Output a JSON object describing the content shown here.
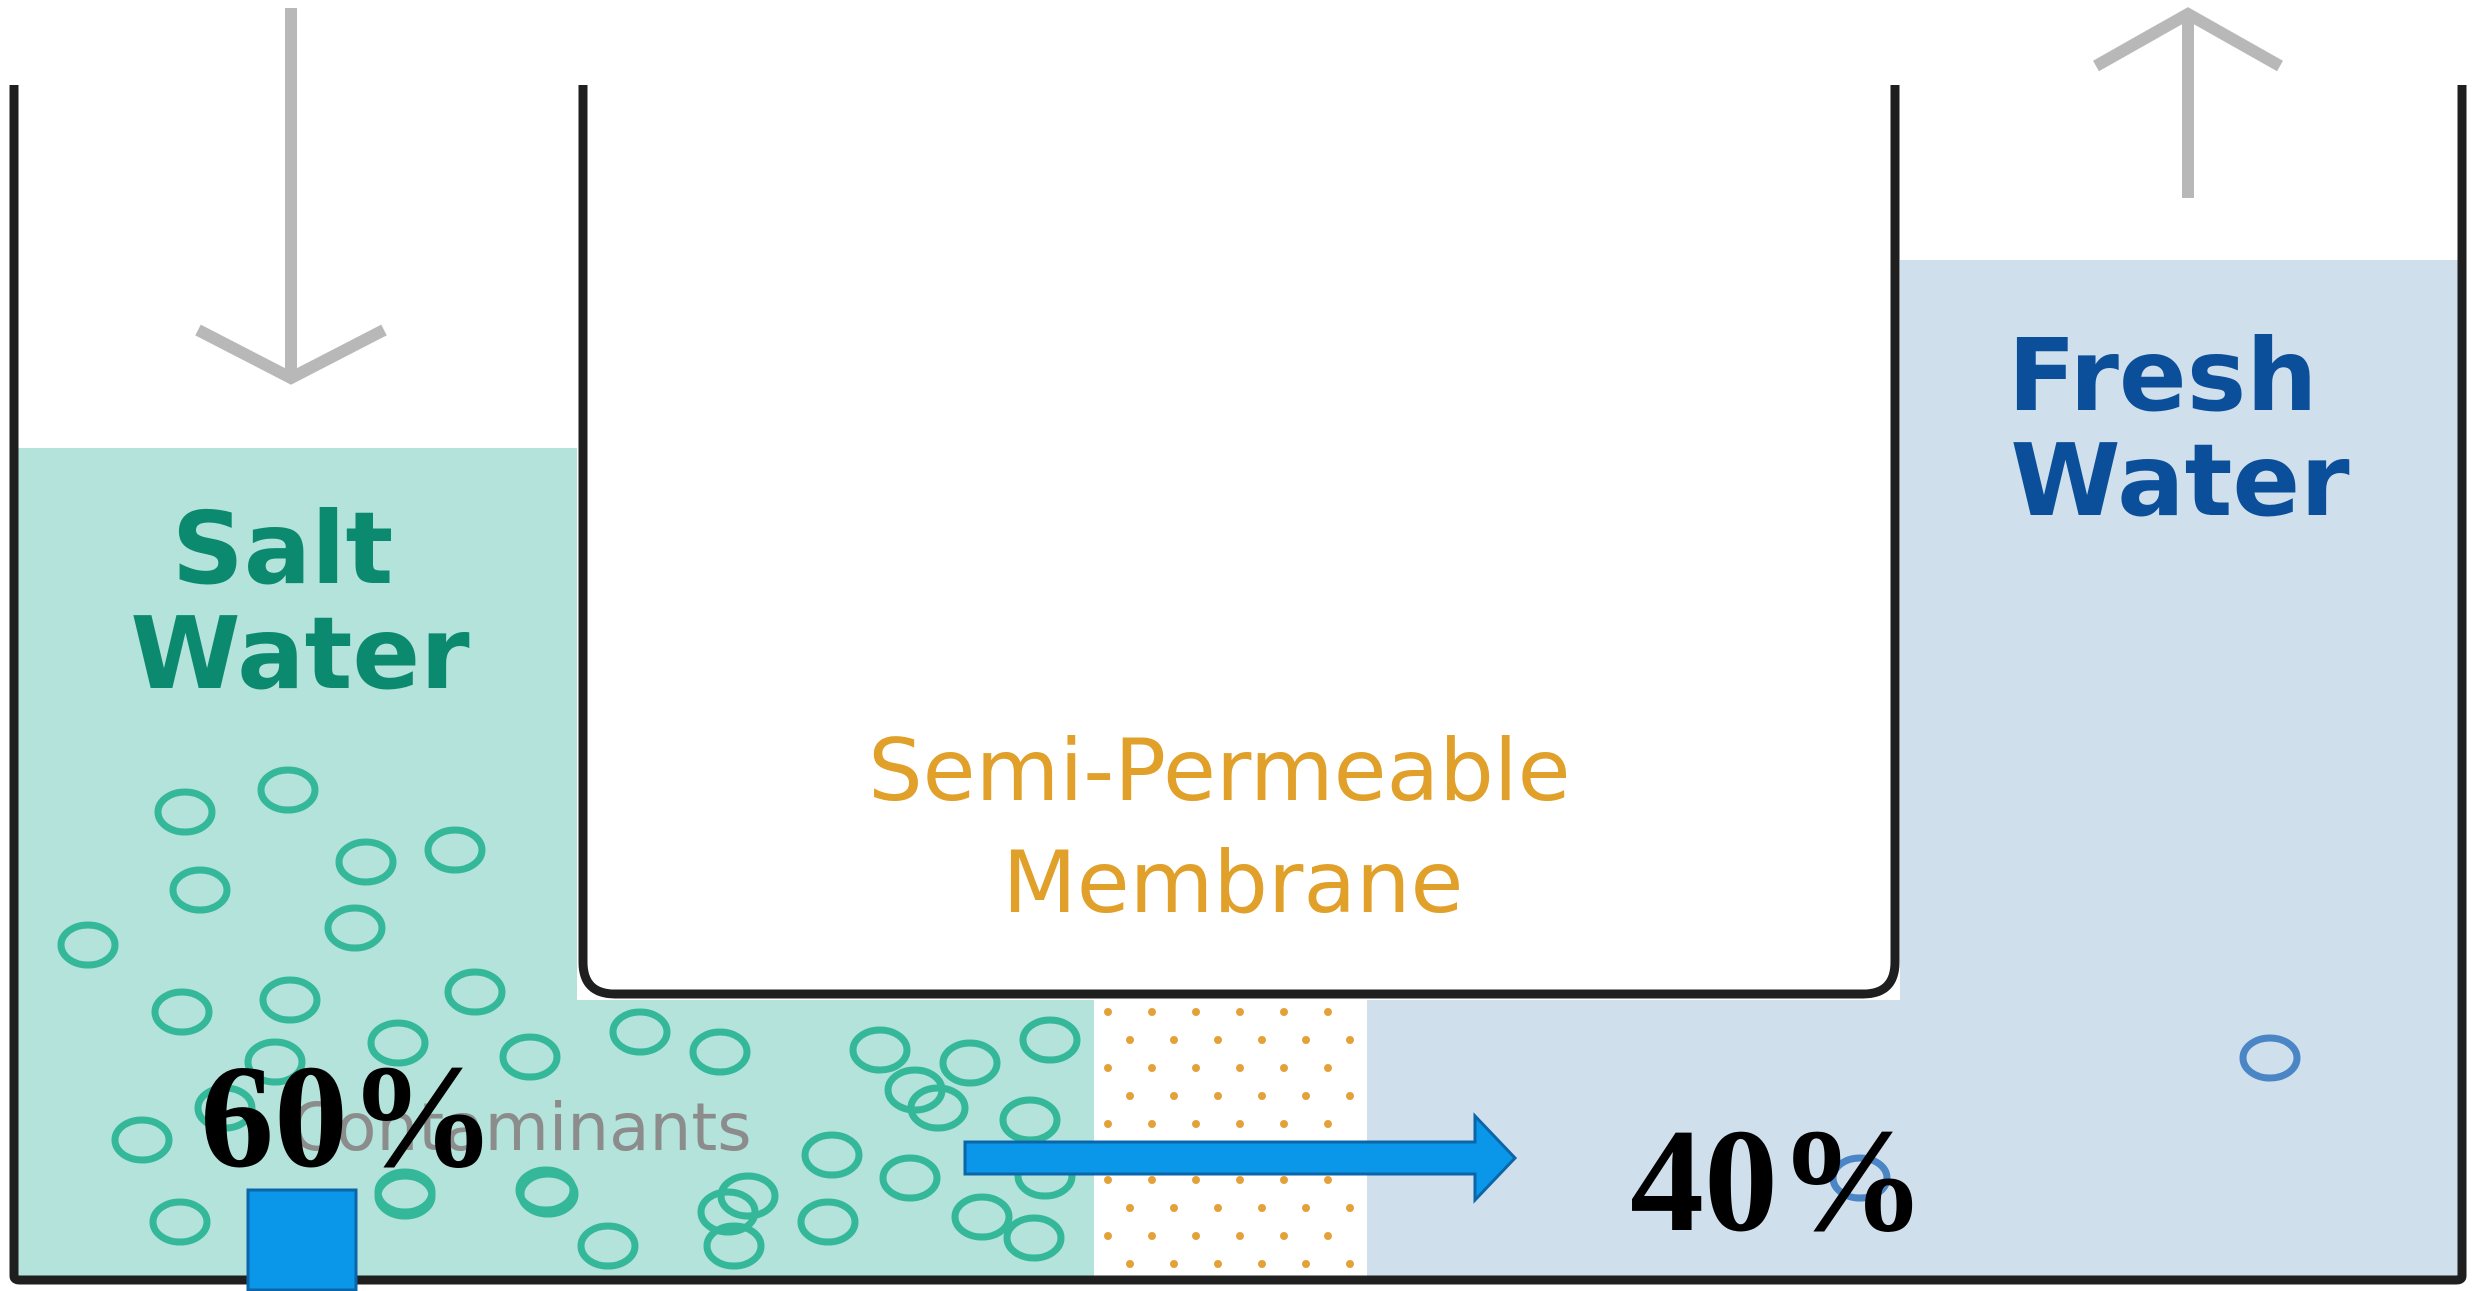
{
  "labels": {
    "salt_water": [
      "Salt",
      "Water"
    ],
    "fresh_water": [
      "Fresh",
      "Water"
    ],
    "membrane": [
      "Semi-Permeable",
      "Membrane"
    ],
    "contaminants": "Contaminants",
    "left_percent": "60%",
    "right_percent": "40%"
  },
  "colors": {
    "salt_water_fill": "#b3e3da",
    "fresh_water_fill": "#cfdfec",
    "salt_label": "#0b8a6f",
    "fresh_label": "#0b4f9a",
    "membrane_label": "#e0a02a",
    "membrane_dots": "#e4a13a",
    "contaminant_ring": "#35b89a",
    "fresh_ring": "#4a86c6",
    "tank_outline": "#1f1f1f",
    "flow_arrow": "#0a97ea",
    "inflow_arrow": "#b8b8b8",
    "contaminants_text": "#8c8c8c",
    "percent_text": "#000000"
  },
  "icons": {
    "inflow": "down-arrow-icon",
    "outflow": "up-arrow-icon",
    "flow": "right-arrow-icon",
    "marker": "square-marker-icon"
  }
}
